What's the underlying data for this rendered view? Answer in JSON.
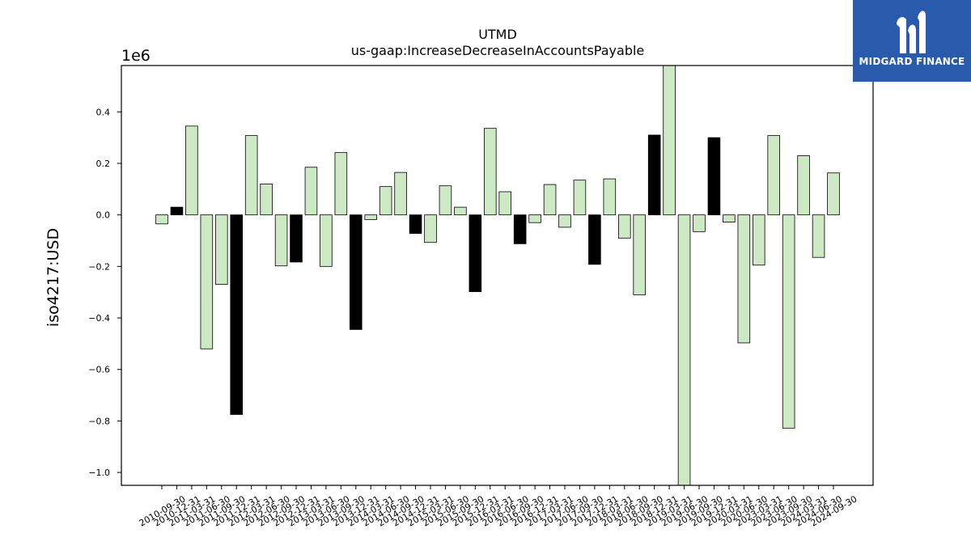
{
  "logo": {
    "text": "MIDGARD FINANCE",
    "icon": "midgard-logo-icon",
    "background": "#2a5aac"
  },
  "chart_data": {
    "type": "bar",
    "title": "UTMD",
    "subtitle": "us-gaap:IncreaseDecreaseInAccountsPayable",
    "ylabel": "iso4217:USD",
    "xlabel": "",
    "offset_label": "1e6",
    "scale": 1000000,
    "ylim": [
      -1.05,
      0.58
    ],
    "yticks": [
      -1.0,
      -0.8,
      -0.6,
      -0.4,
      -0.2,
      0.0,
      0.2,
      0.4
    ],
    "ytick_labels": [
      "−1.0",
      "−0.8",
      "−0.6",
      "−0.4",
      "−0.2",
      "0.0",
      "0.2",
      "0.4"
    ],
    "grid": false,
    "colors": {
      "positive_period": "#cde9c4",
      "highlight": "#000000",
      "edge": "#000000"
    },
    "categories": [
      "2010-09-30",
      "2010-12-31",
      "2011-03-31",
      "2011-06-30",
      "2011-09-30",
      "2011-12-31",
      "2012-03-31",
      "2012-06-30",
      "2012-09-30",
      "2012-12-31",
      "2013-03-31",
      "2013-06-30",
      "2013-09-30",
      "2013-12-31",
      "2014-03-31",
      "2014-06-30",
      "2014-09-30",
      "2014-12-31",
      "2015-03-31",
      "2015-06-30",
      "2015-09-30",
      "2015-12-31",
      "2016-03-31",
      "2016-06-30",
      "2016-09-30",
      "2016-12-31",
      "2017-03-31",
      "2017-06-30",
      "2017-09-30",
      "2017-12-31",
      "2018-03-31",
      "2018-06-30",
      "2018-09-30",
      "2018-12-31",
      "2019-03-31",
      "2019-06-30",
      "2019-09-30",
      "2019-12-31",
      "2020-03-31",
      "2020-06-30",
      "2023-03-31",
      "2023-06-30",
      "2023-09-30",
      "2024-03-31",
      "2024-06-30",
      "2024-09-30"
    ],
    "values": [
      -0.035,
      0.03,
      0.345,
      -0.52,
      -0.27,
      -0.775,
      0.308,
      0.12,
      -0.198,
      -0.183,
      0.185,
      -0.2,
      0.242,
      -0.445,
      -0.018,
      0.11,
      0.165,
      -0.072,
      -0.107,
      0.113,
      0.03,
      -0.298,
      0.336,
      0.09,
      -0.112,
      -0.03,
      0.118,
      -0.048,
      0.135,
      -0.192,
      0.14,
      -0.09,
      -0.31,
      0.31,
      0.58,
      -1.05,
      -0.065,
      0.3,
      -0.028,
      -0.497,
      -0.195,
      0.308,
      -0.828,
      0.23,
      -0.165,
      0.163
    ],
    "highlight": [
      false,
      true,
      false,
      false,
      false,
      true,
      false,
      false,
      false,
      true,
      false,
      false,
      false,
      true,
      false,
      false,
      false,
      true,
      false,
      false,
      false,
      true,
      false,
      false,
      true,
      false,
      false,
      false,
      false,
      true,
      false,
      false,
      false,
      true,
      false,
      false,
      false,
      true,
      false,
      false,
      false,
      false,
      false,
      false,
      false,
      false
    ]
  }
}
